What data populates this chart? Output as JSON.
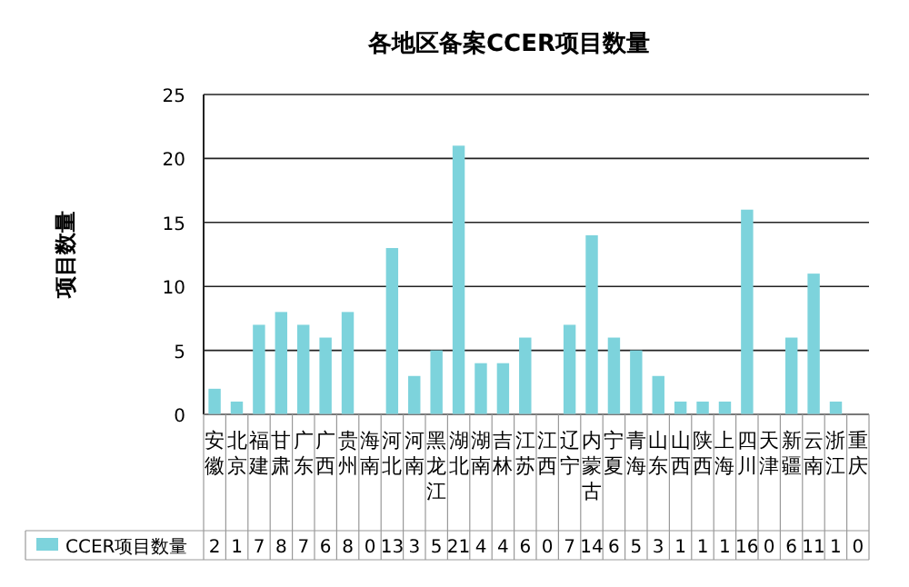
{
  "chart_data": {
    "type": "bar",
    "title": "各地区备案CCER项目数量",
    "ylabel": "项目数量",
    "categories": [
      "安徽",
      "北京",
      "福建",
      "甘肃",
      "广东",
      "广西",
      "贵州",
      "海南",
      "河北",
      "河南",
      "黑龙江",
      "湖北",
      "湖南",
      "吉林",
      "江苏",
      "江西",
      "辽宁",
      "内蒙古",
      "宁夏",
      "青海",
      "山东",
      "山西",
      "陕西",
      "上海",
      "四川",
      "天津",
      "新疆",
      "云南",
      "浙江",
      "重庆"
    ],
    "series": [
      {
        "name": "CCER项目数量",
        "color": "#7dd3dc",
        "values": [
          2,
          1,
          7,
          8,
          7,
          6,
          8,
          0,
          13,
          3,
          5,
          21,
          4,
          4,
          6,
          0,
          7,
          14,
          6,
          5,
          3,
          1,
          1,
          1,
          16,
          0,
          6,
          11,
          1,
          0
        ]
      }
    ],
    "ylim": [
      0,
      25
    ],
    "yticks": [
      0,
      5,
      10,
      15,
      20,
      25
    ],
    "grid": "y",
    "legend": "bottom left",
    "data_labels": true
  }
}
